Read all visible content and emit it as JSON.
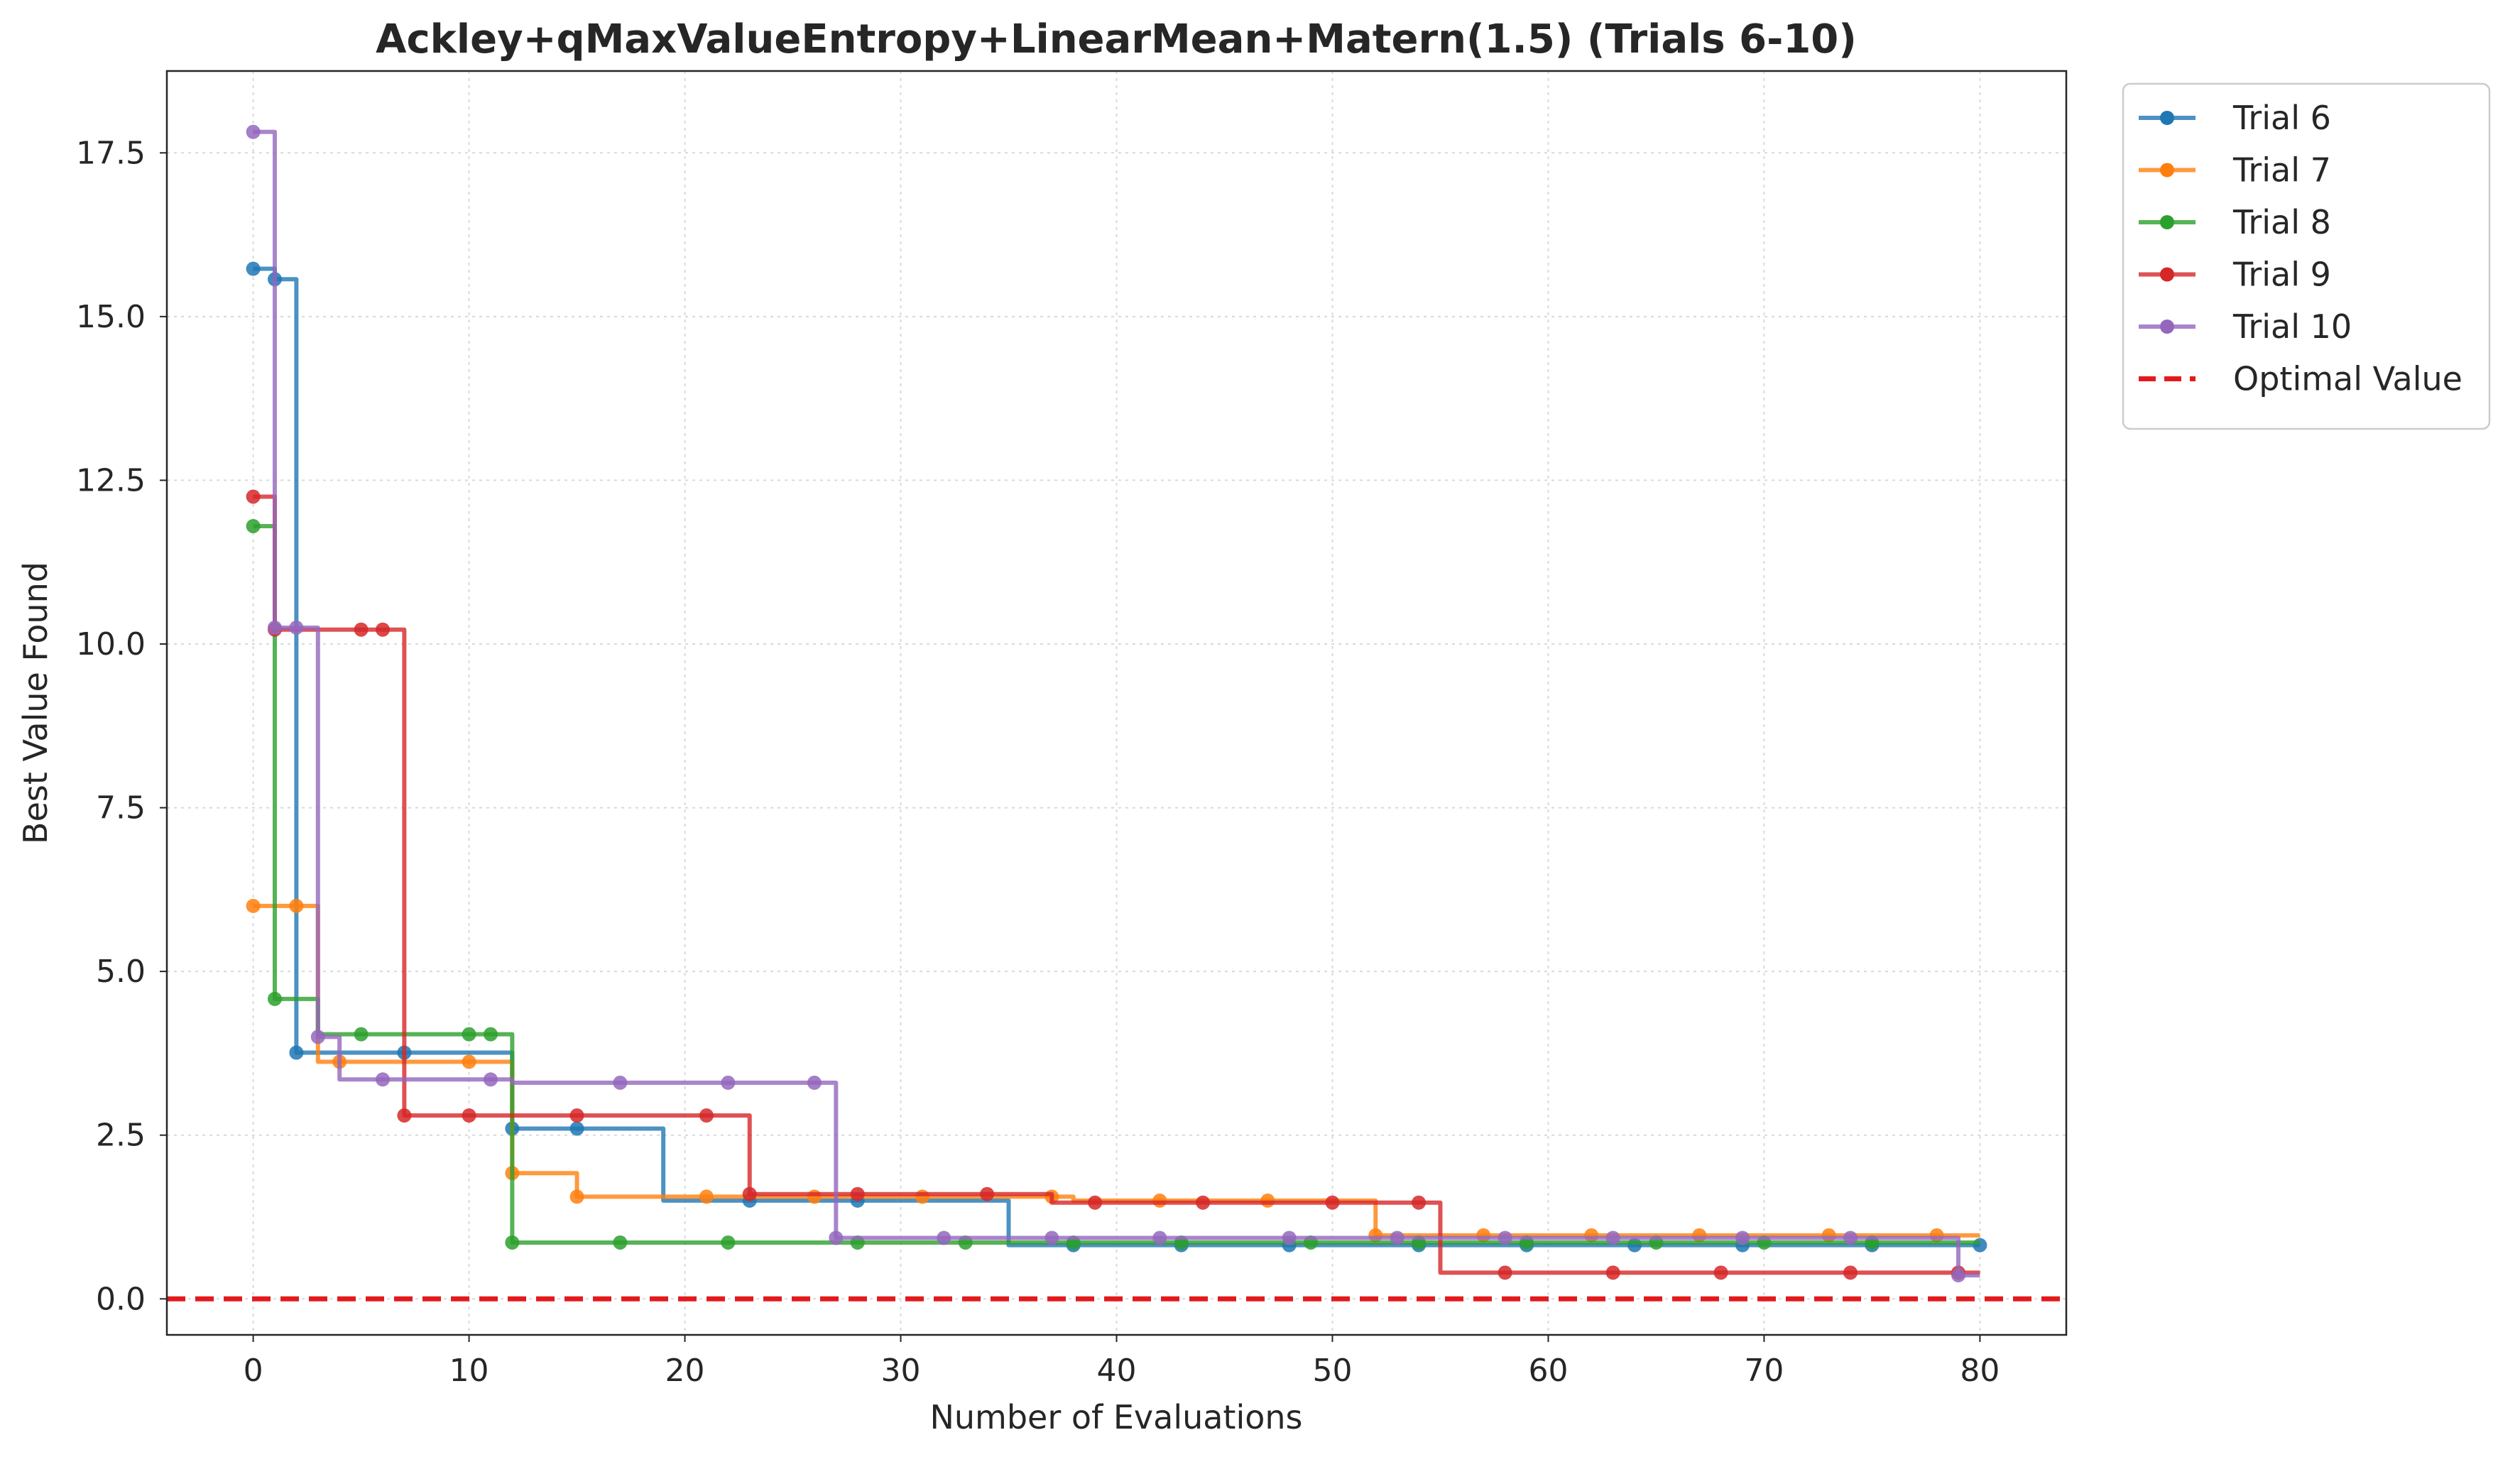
{
  "chart_data": {
    "type": "line",
    "title": "Ackley+qMaxValueEntropy+LinearMean+Matern(1.5) (Trials 6-10)",
    "xlabel": "Number of Evaluations",
    "ylabel": "Best Value Found",
    "xlim": [
      -4,
      84
    ],
    "ylim": [
      -0.55,
      18.75
    ],
    "xticks": [
      0,
      10,
      20,
      30,
      40,
      50,
      60,
      70,
      80
    ],
    "xtick_labels": [
      "0",
      "10",
      "20",
      "30",
      "40",
      "50",
      "60",
      "70",
      "80"
    ],
    "yticks": [
      0,
      2.5,
      5,
      7.5,
      10,
      12.5,
      15,
      17.5
    ],
    "ytick_labels": [
      "0.0",
      "2.5",
      "5.0",
      "7.5",
      "10.0",
      "12.5",
      "15.0",
      "17.5"
    ],
    "grid": true,
    "legend_position": "outside-top-right",
    "series": [
      {
        "name": "Trial 6",
        "color": "#1f77b4",
        "steps": [
          [
            0,
            15.73
          ],
          [
            1,
            15.57
          ],
          [
            2,
            3.76
          ],
          [
            12,
            2.6
          ],
          [
            19,
            1.5
          ],
          [
            35,
            0.82
          ],
          [
            80,
            0.82
          ]
        ],
        "markers": [
          0,
          1,
          2,
          7,
          12,
          15,
          23,
          28,
          38,
          43,
          48,
          54,
          59,
          64,
          69,
          75,
          80
        ]
      },
      {
        "name": "Trial 7",
        "color": "#ff7f0e",
        "steps": [
          [
            0,
            6.0
          ],
          [
            2,
            6.0
          ],
          [
            3,
            3.62
          ],
          [
            12,
            1.92
          ],
          [
            14,
            1.92
          ],
          [
            15,
            1.56
          ],
          [
            36,
            1.56
          ],
          [
            37,
            1.56
          ],
          [
            38,
            1.5
          ],
          [
            52,
            0.97
          ],
          [
            80,
            0.97
          ]
        ],
        "markers": [
          0,
          2,
          4,
          10,
          12,
          15,
          21,
          26,
          31,
          37,
          42,
          47,
          52,
          57,
          62,
          67,
          73,
          78
        ]
      },
      {
        "name": "Trial 8",
        "color": "#2ca02c",
        "steps": [
          [
            0,
            11.8
          ],
          [
            1,
            4.58
          ],
          [
            2,
            4.58
          ],
          [
            3,
            4.04
          ],
          [
            11,
            4.04
          ],
          [
            12,
            0.86
          ],
          [
            80,
            0.86
          ]
        ],
        "markers": [
          0,
          1,
          5,
          10,
          11,
          12,
          17,
          22,
          28,
          33,
          38,
          43,
          49,
          54,
          59,
          65,
          70,
          75
        ]
      },
      {
        "name": "Trial 9",
        "color": "#d62728",
        "steps": [
          [
            0,
            12.25
          ],
          [
            1,
            10.22
          ],
          [
            6,
            10.22
          ],
          [
            7,
            2.8
          ],
          [
            22,
            2.8
          ],
          [
            23,
            1.6
          ],
          [
            36,
            1.6
          ],
          [
            37,
            1.47
          ],
          [
            54,
            1.47
          ],
          [
            55,
            0.4
          ],
          [
            80,
            0.4
          ]
        ],
        "markers": [
          0,
          1,
          5,
          6,
          7,
          10,
          15,
          21,
          23,
          28,
          34,
          39,
          44,
          50,
          54,
          58,
          63,
          68,
          74,
          79
        ]
      },
      {
        "name": "Trial 10",
        "color": "#9467bd",
        "steps": [
          [
            0,
            17.82
          ],
          [
            1,
            10.25
          ],
          [
            2,
            10.25
          ],
          [
            3,
            4.0
          ],
          [
            4,
            3.35
          ],
          [
            11,
            3.35
          ],
          [
            12,
            3.3
          ],
          [
            26,
            3.3
          ],
          [
            27,
            0.93
          ],
          [
            79,
            0.93
          ],
          [
            79,
            0.36
          ],
          [
            80,
            0.36
          ]
        ],
        "markers": [
          0,
          1,
          2,
          3,
          6,
          11,
          17,
          22,
          26,
          27,
          32,
          37,
          42,
          48,
          53,
          58,
          63,
          69,
          74,
          79
        ]
      }
    ],
    "reference_line": {
      "name": "Optimal Value",
      "value": 0.0,
      "color": "#e31a1c",
      "style": "dashed"
    }
  }
}
